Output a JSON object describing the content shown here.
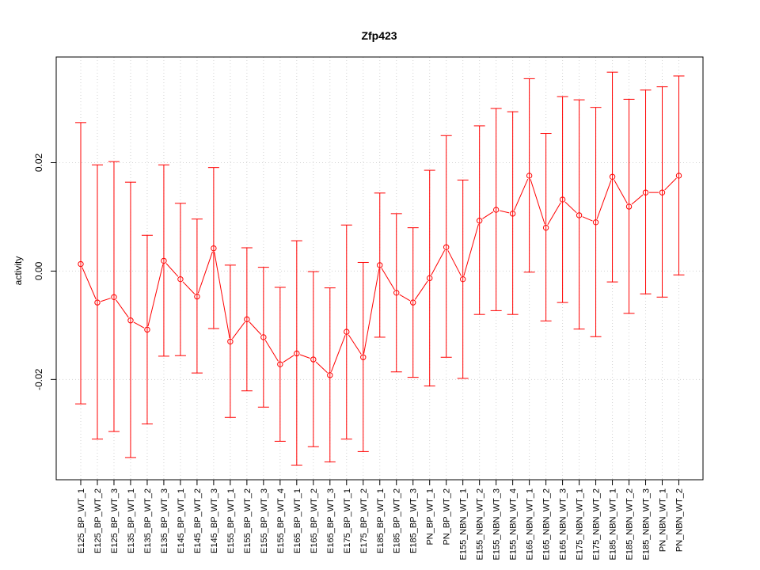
{
  "chart_data": {
    "type": "line",
    "title": "Zfp423",
    "xlabel": "",
    "ylabel": "activity",
    "ylim": [
      -0.0385,
      0.0395
    ],
    "yticks": [
      -0.02,
      0.0,
      0.02
    ],
    "ytick_labels": [
      "-0.02",
      "0.00",
      "0.02"
    ],
    "grid": true,
    "error_bars": true,
    "color": "#ff0000",
    "grid_color": "#d3d3d3",
    "categories": [
      "E125_BP_WT_1",
      "E125_BP_WT_2",
      "E125_BP_WT_3",
      "E135_BP_WT_1",
      "E135_BP_WT_2",
      "E135_BP_WT_3",
      "E145_BP_WT_1",
      "E145_BP_WT_2",
      "E145_BP_WT_3",
      "E155_BP_WT_1",
      "E155_BP_WT_2",
      "E155_BP_WT_3",
      "E155_BP_WT_4",
      "E165_BP_WT_1",
      "E165_BP_WT_2",
      "E165_BP_WT_3",
      "E175_BP_WT_1",
      "E175_BP_WT_2",
      "E185_BP_WT_1",
      "E185_BP_WT_2",
      "E185_BP_WT_3",
      "PN_BP_WT_1",
      "PN_BP_WT_2",
      "E155_NBN_WT_1",
      "E155_NBN_WT_2",
      "E155_NBN_WT_3",
      "E155_NBN_WT_4",
      "E165_NBN_WT_1",
      "E165_NBN_WT_2",
      "E165_NBN_WT_3",
      "E175_NBN_WT_1",
      "E175_NBN_WT_2",
      "E185_NBN_WT_1",
      "E185_NBN_WT_2",
      "E185_NBN_WT_3",
      "PN_NBN_WT_1",
      "PN_NBN_WT_2"
    ],
    "values": [
      0.0013,
      -0.0058,
      -0.0048,
      -0.0091,
      -0.0108,
      0.0019,
      -0.0015,
      -0.0047,
      0.0042,
      -0.013,
      -0.0089,
      -0.0122,
      -0.0172,
      -0.0152,
      -0.0163,
      -0.0192,
      -0.0112,
      -0.0159,
      0.0011,
      -0.004,
      -0.0058,
      -0.0013,
      0.0044,
      -0.0015,
      0.0093,
      0.0113,
      0.0106,
      0.0176,
      0.008,
      0.0132,
      0.0103,
      0.009,
      0.0174,
      0.0119,
      0.0145,
      0.0145,
      0.0176
    ],
    "upper": [
      0.0274,
      0.0196,
      0.0202,
      0.0164,
      0.0066,
      0.0196,
      0.0125,
      0.0096,
      0.0191,
      0.0011,
      0.0043,
      0.0007,
      -0.003,
      0.0056,
      -0.0001,
      -0.0031,
      0.0085,
      0.0016,
      0.0144,
      0.0106,
      0.008,
      0.0186,
      0.025,
      0.0168,
      0.0268,
      0.03,
      0.0294,
      0.0355,
      0.0254,
      0.0322,
      0.0316,
      0.0302,
      0.0367,
      0.0317,
      0.0334,
      0.034,
      0.036
    ],
    "lower": [
      -0.0245,
      -0.031,
      -0.0296,
      -0.0344,
      -0.0282,
      -0.0157,
      -0.0156,
      -0.0188,
      -0.0106,
      -0.027,
      -0.0221,
      -0.0251,
      -0.0314,
      -0.0358,
      -0.0324,
      -0.0352,
      -0.031,
      -0.0333,
      -0.0122,
      -0.0186,
      -0.0196,
      -0.0212,
      -0.0159,
      -0.0198,
      -0.008,
      -0.0073,
      -0.008,
      -0.0002,
      -0.0092,
      -0.0058,
      -0.0107,
      -0.0121,
      -0.002,
      -0.0078,
      -0.0042,
      -0.0048,
      -0.0007
    ]
  }
}
